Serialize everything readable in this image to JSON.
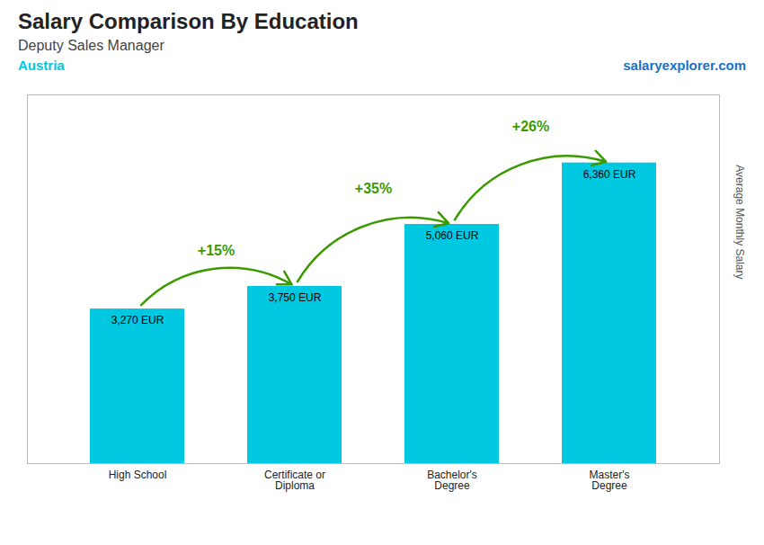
{
  "chart_data": {
    "type": "bar",
    "title": "Salary Comparison By Education",
    "subtitle": "Deputy Sales Manager",
    "ylabel": "Average Monthly Salary",
    "categories": [
      "High School",
      "Certificate or\nDiploma",
      "Bachelor's\nDegree",
      "Master's\nDegree"
    ],
    "values": [
      3270,
      3750,
      5060,
      6360
    ],
    "value_labels": [
      "3,270 EUR",
      "3,750 EUR",
      "5,060 EUR",
      "6,360 EUR"
    ],
    "data_labels": true,
    "color": "#00c8e0",
    "ylim": [
      0,
      7800
    ],
    "grid": false,
    "tick_labels": "x",
    "annotations": [
      {
        "text": "Austria"
      },
      {
        "text": "salaryexplorer.com"
      },
      {
        "text": "+15%",
        "from": "High School",
        "to": "Certificate or\nDiploma"
      },
      {
        "text": "+35%",
        "from": "Certificate or\nDiploma",
        "to": "Bachelor's\nDegree"
      },
      {
        "text": "+26%",
        "from": "Bachelor's\nDegree",
        "to": "Master's\nDegree"
      }
    ]
  }
}
